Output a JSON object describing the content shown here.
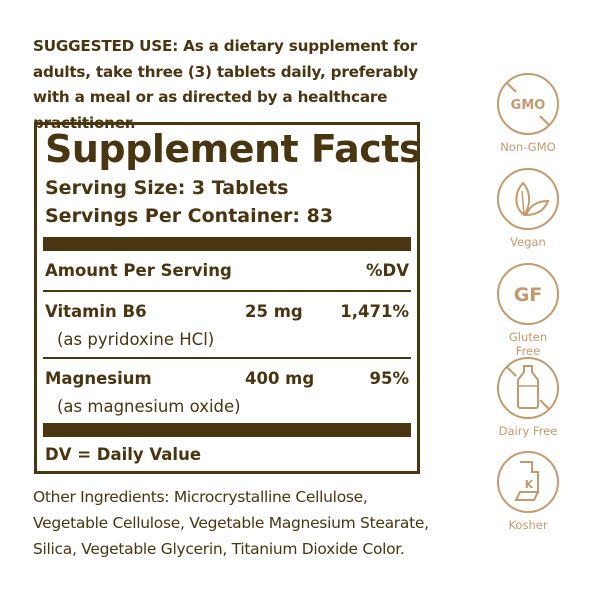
{
  "suggested_use": {
    "label": "SUGGESTED USE:",
    "text": " As a dietary supplement for adults, take three (3) tablets daily, preferably with a meal or as directed by a healthcare practitioner."
  },
  "facts": {
    "title": "Supplement Facts",
    "serving_size": "Serving Size: 3 Tablets",
    "servings_per_container": "Servings Per Container: 83",
    "amount_header": "Amount Per Serving",
    "dv_header": "%DV",
    "nutrients": [
      {
        "name": "Vitamin B6",
        "source": "(as pyridoxine HCl)",
        "amount": "25 mg",
        "dv": "1,471%"
      },
      {
        "name": "Magnesium",
        "source": "(as magnesium oxide)",
        "amount": "400 mg",
        "dv": "95%"
      }
    ],
    "footnote": "DV = Daily Value"
  },
  "other_ingredients": "Other Ingredients: Microcrystalline Cellulose, Vegetable Cellulose, Vegetable Magnesium Stearate, Silica, Vegetable Glycerin, Titanium Dioxide Color.",
  "badges": [
    {
      "label": "Non-GMO",
      "icon_text": "GMO",
      "icon": "no-gmo-icon"
    },
    {
      "label": "Vegan",
      "icon": "leaf-icon"
    },
    {
      "label": "Gluten Free",
      "icon_text": "GF",
      "icon": "gluten-free-icon"
    },
    {
      "label": "Dairy Free",
      "icon": "no-milk-bottle-icon"
    },
    {
      "label": "Kosher",
      "icon_text": "K",
      "icon": "kosher-icon"
    }
  ],
  "colors": {
    "text": "#4a3511",
    "badge": "#c49a6c"
  }
}
